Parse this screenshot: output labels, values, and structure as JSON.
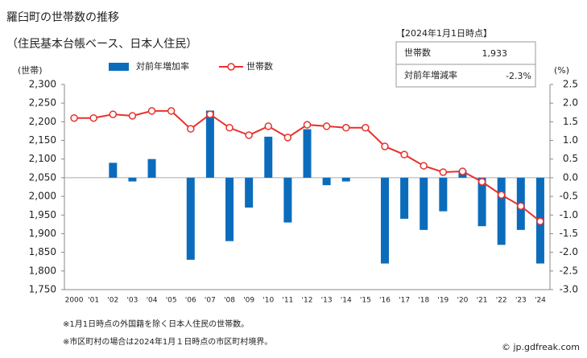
{
  "chart_data": {
    "type": "bar",
    "title": "羅臼町の世帯数の推移",
    "subtitle": "（住民基本台帳ベース、日本人住民）",
    "y_label": "(世帯)",
    "y2_label": "(%)",
    "categories": [
      "2000",
      "'01",
      "'02",
      "'03",
      "'04",
      "'05",
      "'06",
      "'07",
      "'08",
      "'09",
      "'10",
      "'11",
      "'12",
      "'13",
      "'14",
      "'15",
      "'16",
      "'17",
      "'18",
      "'19",
      "'20",
      "'21",
      "'22",
      "'23",
      "'24"
    ],
    "series": [
      {
        "name": "対前年増加率",
        "type": "bar",
        "axis": "y2",
        "color": "#0c6cbc",
        "values": [
          null,
          0,
          0.4,
          -0.1,
          0.5,
          0,
          -2.2,
          1.8,
          -1.7,
          -0.8,
          1.1,
          -1.2,
          1.3,
          -0.2,
          -0.1,
          0,
          -2.3,
          -1.1,
          -1.4,
          -0.9,
          0.2,
          -1.3,
          -1.8,
          -1.4,
          -2.3
        ]
      },
      {
        "name": "世帯数",
        "type": "line",
        "color": "#e8312b",
        "values": [
          2210,
          2210,
          2220,
          2216,
          2229,
          2229,
          2181,
          2220,
          2184,
          2164,
          2188,
          2158,
          2192,
          2188,
          2184,
          2184,
          2134,
          2112,
          2082,
          2065,
          2067,
          2039,
          2004,
          1974,
          1933
        ]
      }
    ],
    "ylim": [
      1750,
      2300
    ],
    "yticks": [
      {
        "value": 2300,
        "label": "2,300"
      },
      {
        "value": 2250,
        "label": "2,250"
      },
      {
        "value": 2200,
        "label": "2,200"
      },
      {
        "value": 2150,
        "label": "2,150"
      },
      {
        "value": 2100,
        "label": "2,100"
      },
      {
        "value": 2050,
        "label": "2,050"
      },
      {
        "value": 2000,
        "label": "2,000"
      },
      {
        "value": 1950,
        "label": "1,950"
      },
      {
        "value": 1900,
        "label": "1,900"
      },
      {
        "value": 1850,
        "label": "1,850"
      },
      {
        "value": 1800,
        "label": "1,800"
      },
      {
        "value": 1750,
        "label": "1,750"
      }
    ],
    "y2lim": [
      -3.0,
      2.5
    ],
    "y2ticks": [
      2.5,
      {
        "value": 2,
        "label": "2.0"
      },
      1.5,
      {
        "value": 1,
        "label": "1.0"
      },
      0.5,
      {
        "value": 0,
        "label": "0.0"
      },
      -0.5,
      {
        "value": -1,
        "label": "-1.0"
      },
      -1.5,
      {
        "value": -2,
        "label": "-2.0"
      },
      -2.5,
      {
        "value": -3,
        "label": "-3.0"
      }
    ],
    "grid": false
  },
  "info_box": {
    "title": "【2024年1月1日時点】",
    "rows": [
      [
        "世帯数",
        "1,933"
      ],
      [
        "対前年増減率",
        "-2.3%"
      ]
    ]
  },
  "footnotes": [
    "※1月1日時点の外国籍を除く日本人住民の世帯数。",
    "※市区町村の場合は2024年1月１日時点の市区町村境界。"
  ],
  "credit": "© jp.gdfreak.com"
}
